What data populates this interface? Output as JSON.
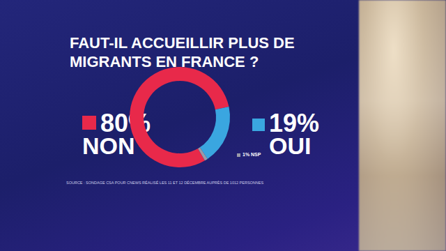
{
  "chart_data": {
    "type": "pie",
    "title": "FAUT-IL ACCUEILLIR PLUS DE MIGRANTS EN FRANCE ?",
    "categories": [
      "NON",
      "OUI",
      "NSP"
    ],
    "values": [
      80,
      19,
      1
    ],
    "value_labels": [
      "80%",
      "19%",
      "1%"
    ],
    "colors": [
      "#e8294a",
      "#3aa6e0",
      "#9a9aa8"
    ],
    "data_labels": true,
    "source": "SOURCE : SONDAGE CSA POUR CNEWS RÉALISÉ LES 11 ET 12 DÉCEMBRE AUPRÈS DE 1012 PERSONNES"
  }
}
